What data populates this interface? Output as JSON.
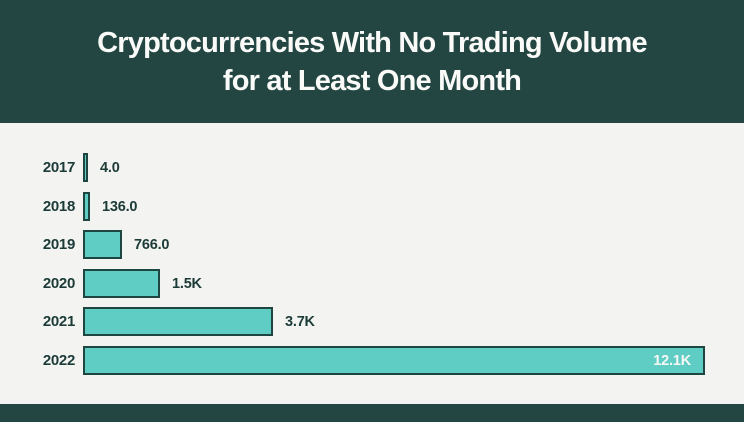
{
  "header": {
    "title_line1": "Cryptocurrencies With No Trading Volume",
    "title_line2": "for at Least One Month"
  },
  "colors": {
    "header_bg": "#234642",
    "chart_bg": "#f3f4f1",
    "bar_fill": "#5fcdc4",
    "bar_border": "#1f4540",
    "label_text": "#1c3b38",
    "inside_label_text": "#f7f8f6"
  },
  "chart_data": {
    "type": "bar",
    "orientation": "horizontal",
    "title": "Cryptocurrencies With No Trading Volume for at Least One Month",
    "categories": [
      "2017",
      "2018",
      "2019",
      "2020",
      "2021",
      "2022"
    ],
    "values": [
      4,
      136,
      766,
      1500,
      3700,
      12100
    ],
    "value_labels": [
      "4.0",
      "136.0",
      "766.0",
      "1.5K",
      "3.7K",
      "12.1K"
    ],
    "value_label_position": [
      "outside",
      "outside",
      "outside",
      "outside",
      "outside",
      "inside"
    ],
    "xlim": [
      0,
      12100
    ],
    "grid": false,
    "legend": false
  }
}
